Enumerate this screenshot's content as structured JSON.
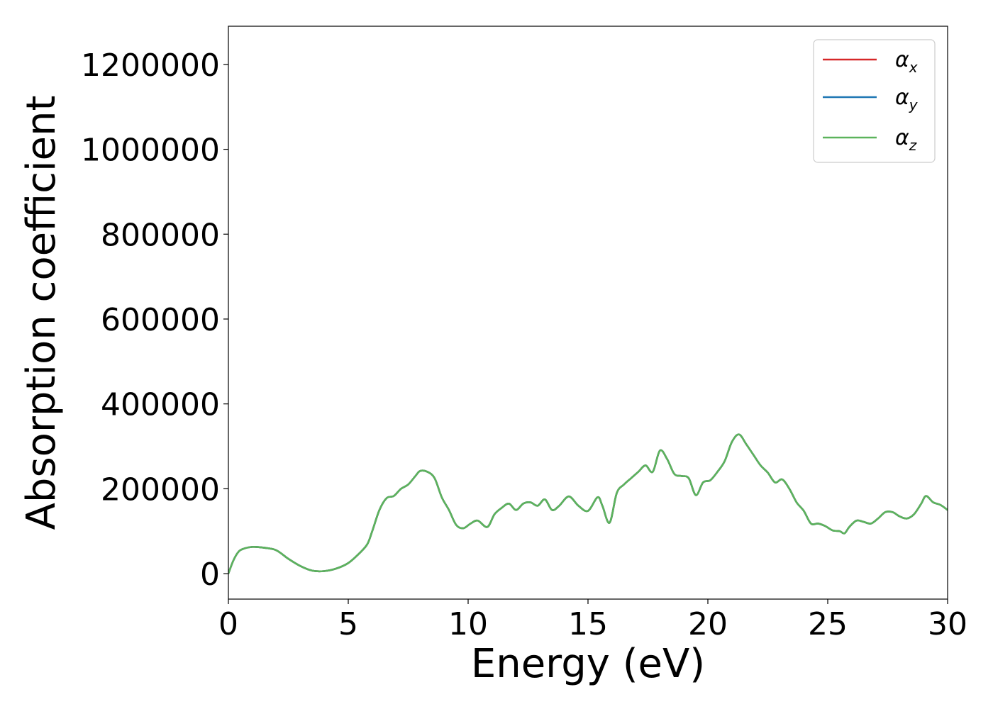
{
  "chart_data": {
    "type": "line",
    "title": "",
    "xlabel": "Energy (eV)",
    "ylabel": "Absorption coefficient",
    "xlim": [
      0,
      30
    ],
    "ylim": [
      -60000,
      1290000
    ],
    "xticks": [
      0,
      5,
      10,
      15,
      20,
      25,
      30
    ],
    "yticks": [
      0,
      200000,
      400000,
      600000,
      800000,
      1000000,
      1200000
    ],
    "grid": false,
    "legend": {
      "position": "top-right"
    },
    "x": [
      0,
      0.2,
      0.4,
      0.6,
      1.0,
      1.5,
      2.0,
      2.5,
      3.0,
      3.5,
      4.0,
      4.5,
      5.0,
      5.5,
      5.8,
      6.0,
      6.3,
      6.6,
      6.9,
      7.2,
      7.5,
      7.8,
      8.0,
      8.3,
      8.6,
      8.9,
      9.2,
      9.5,
      9.8,
      10.1,
      10.4,
      10.8,
      11.1,
      11.4,
      11.7,
      12.0,
      12.3,
      12.6,
      12.9,
      13.2,
      13.5,
      13.8,
      14.2,
      14.6,
      15.0,
      15.4,
      15.6,
      15.9,
      16.2,
      16.5,
      16.8,
      17.1,
      17.4,
      17.7,
      18.0,
      18.3,
      18.6,
      18.9,
      19.2,
      19.5,
      19.8,
      20.1,
      20.4,
      20.7,
      21.0,
      21.3,
      21.6,
      21.9,
      22.2,
      22.5,
      22.8,
      23.1,
      23.4,
      23.7,
      24.0,
      24.3,
      24.6,
      24.9,
      25.2,
      25.5,
      25.7,
      25.9,
      26.2,
      26.5,
      26.8,
      27.1,
      27.4,
      27.7,
      28.0,
      28.3,
      28.6,
      28.9,
      29.1,
      29.4,
      29.7,
      30.0
    ],
    "series": [
      {
        "name": "α_x",
        "color": "#d62728",
        "values": [
          0,
          30000,
          50000,
          58000,
          63000,
          61000,
          55000,
          35000,
          18000,
          7000,
          6000,
          12000,
          25000,
          50000,
          70000,
          100000,
          150000,
          178000,
          183000,
          200000,
          210000,
          230000,
          242000,
          240000,
          225000,
          180000,
          150000,
          115000,
          107000,
          118000,
          125000,
          110000,
          140000,
          155000,
          165000,
          150000,
          165000,
          168000,
          160000,
          175000,
          150000,
          160000,
          182000,
          160000,
          148000,
          180000,
          160000,
          120000,
          190000,
          210000,
          225000,
          240000,
          255000,
          240000,
          290000,
          270000,
          235000,
          230000,
          225000,
          185000,
          215000,
          220000,
          240000,
          265000,
          310000,
          328000,
          305000,
          280000,
          255000,
          238000,
          215000,
          222000,
          200000,
          168000,
          148000,
          118000,
          118000,
          112000,
          102000,
          100000,
          95000,
          110000,
          125000,
          122000,
          118000,
          130000,
          145000,
          145000,
          135000,
          130000,
          140000,
          165000,
          183000,
          168000,
          162000,
          150000
        ]
      },
      {
        "name": "α_y",
        "color": "#1f77b4",
        "values": [
          0,
          30000,
          50000,
          58000,
          63000,
          61000,
          55000,
          35000,
          18000,
          7000,
          6000,
          12000,
          25000,
          50000,
          70000,
          100000,
          150000,
          178000,
          183000,
          200000,
          210000,
          230000,
          242000,
          240000,
          225000,
          180000,
          150000,
          115000,
          107000,
          118000,
          125000,
          110000,
          140000,
          155000,
          165000,
          150000,
          165000,
          168000,
          160000,
          175000,
          150000,
          160000,
          182000,
          160000,
          148000,
          180000,
          160000,
          120000,
          190000,
          210000,
          225000,
          240000,
          255000,
          240000,
          290000,
          270000,
          235000,
          230000,
          225000,
          185000,
          215000,
          220000,
          240000,
          265000,
          310000,
          328000,
          305000,
          280000,
          255000,
          238000,
          215000,
          222000,
          200000,
          168000,
          148000,
          118000,
          118000,
          112000,
          102000,
          100000,
          95000,
          110000,
          125000,
          122000,
          118000,
          130000,
          145000,
          145000,
          135000,
          130000,
          140000,
          165000,
          183000,
          168000,
          162000,
          150000
        ]
      },
      {
        "name": "α_z",
        "color": "#5cb35c",
        "values": [
          0,
          30000,
          50000,
          58000,
          63000,
          61000,
          55000,
          35000,
          18000,
          7000,
          6000,
          12000,
          25000,
          50000,
          70000,
          100000,
          150000,
          178000,
          183000,
          200000,
          210000,
          230000,
          242000,
          240000,
          225000,
          180000,
          150000,
          115000,
          107000,
          118000,
          125000,
          110000,
          140000,
          155000,
          165000,
          150000,
          165000,
          168000,
          160000,
          175000,
          150000,
          160000,
          182000,
          160000,
          148000,
          180000,
          160000,
          120000,
          190000,
          210000,
          225000,
          240000,
          255000,
          240000,
          290000,
          270000,
          235000,
          230000,
          225000,
          185000,
          215000,
          220000,
          240000,
          265000,
          310000,
          328000,
          305000,
          280000,
          255000,
          238000,
          215000,
          222000,
          200000,
          168000,
          148000,
          118000,
          118000,
          112000,
          102000,
          100000,
          95000,
          110000,
          125000,
          122000,
          118000,
          130000,
          145000,
          145000,
          135000,
          130000,
          140000,
          165000,
          183000,
          168000,
          162000,
          150000
        ]
      }
    ]
  }
}
